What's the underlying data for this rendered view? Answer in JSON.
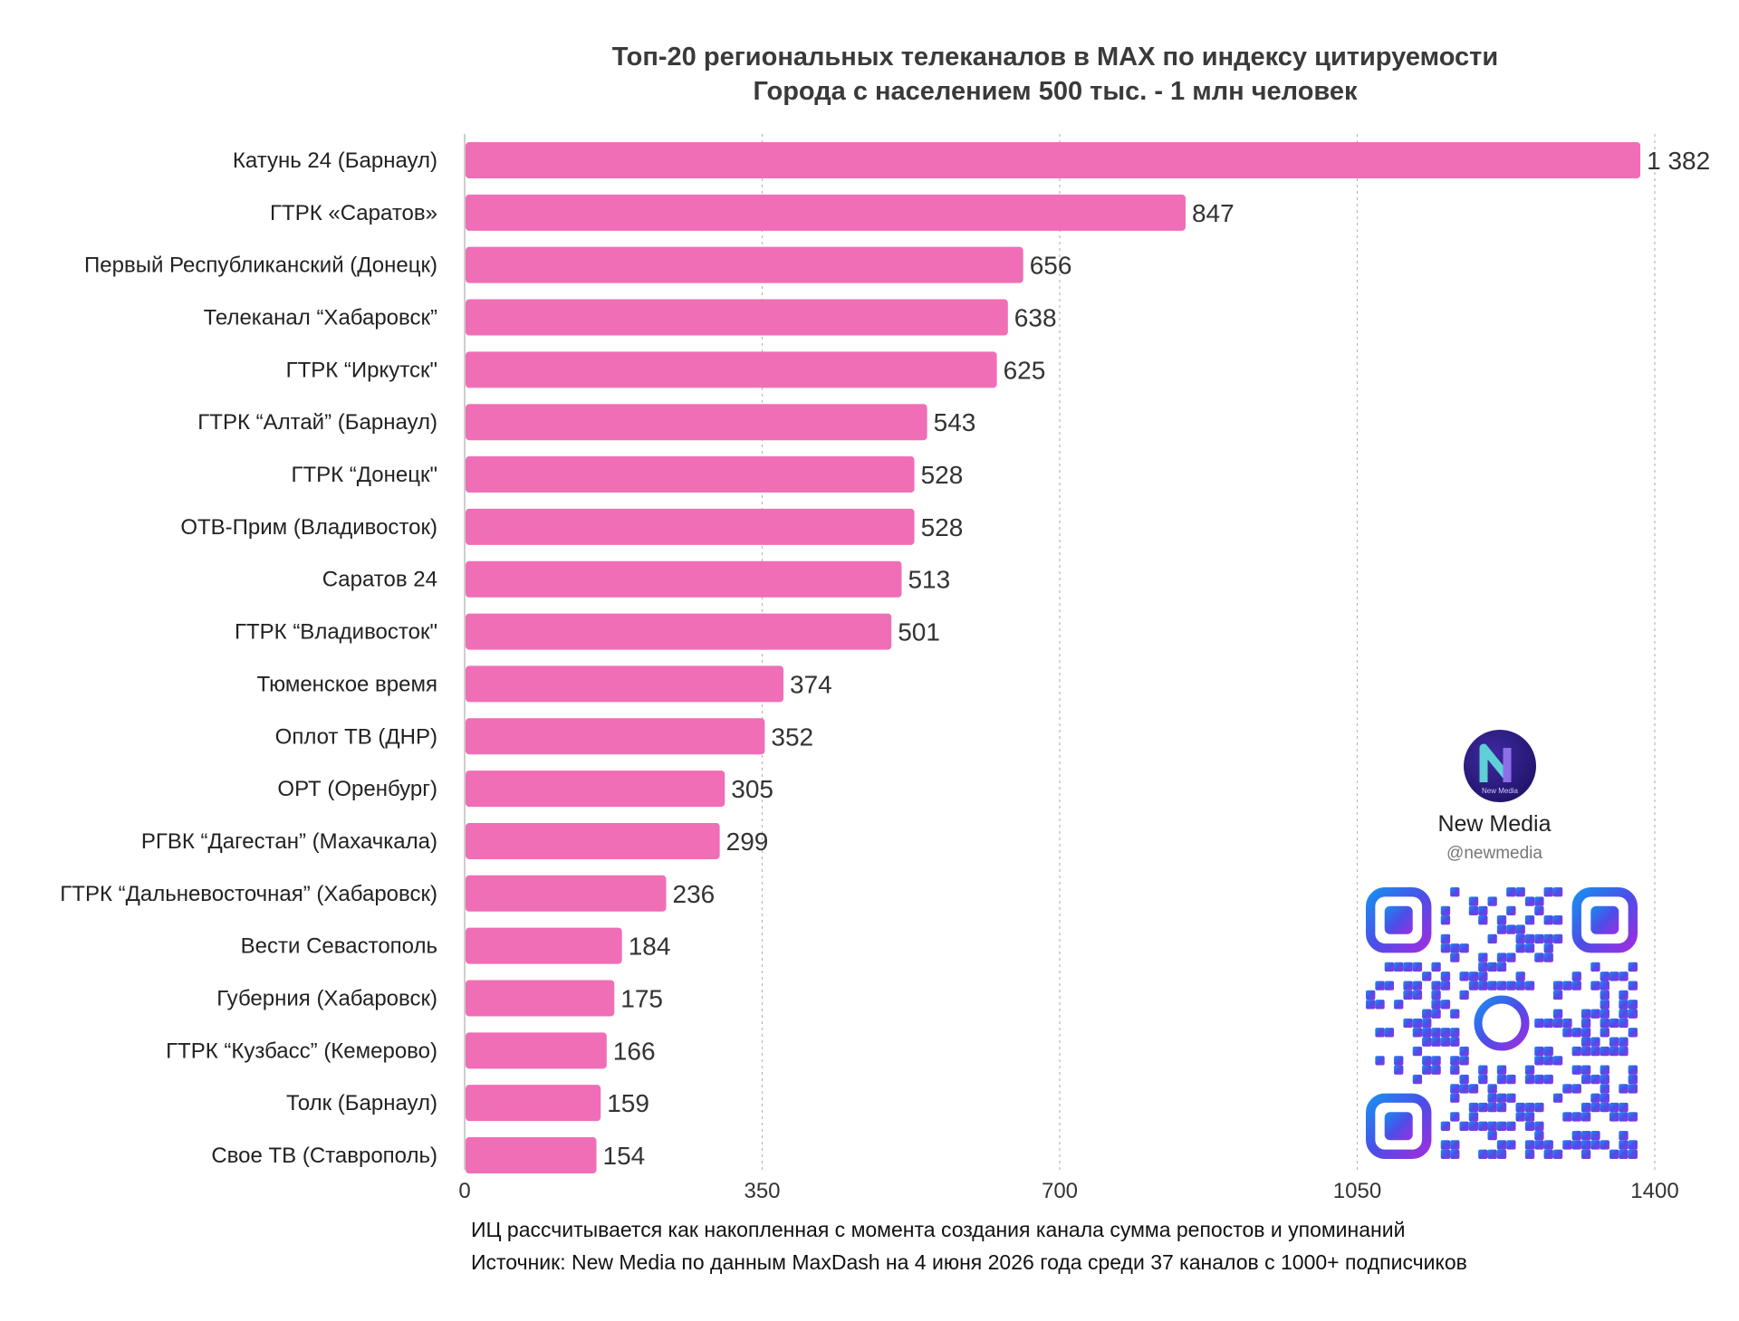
{
  "chart_data": {
    "type": "bar",
    "orientation": "horizontal",
    "title": "Топ-20 региональных телеканалов в MAX по индексу цитируемости",
    "subtitle": "Города с населением 500 тыс. - 1 млн человек",
    "categories": [
      "Катунь 24 (Барнаул)",
      "ГТРК «Саратов»",
      "Первый Республиканский (Донецк)",
      "Телеканал “Хабаровск”",
      "ГТРК “Иркутск\"",
      "ГТРК “Алтай” (Барнаул)",
      "ГТРК “Донецк\"",
      "ОТВ-Прим (Владивосток)",
      "Саратов 24",
      "ГТРК “Владивосток\"",
      "Тюменское время",
      "Оплот ТВ (ДНР)",
      "ОРТ (Оренбург)",
      "РГВК “Дагестан” (Махачкала)",
      "ГТРК “Дальневосточная” (Хабаровск)",
      "Вести Севастополь",
      "Губерния (Хабаровск)",
      "ГТРК “Кузбасс” (Кемерово)",
      "Толк (Барнаул)",
      "Свое ТВ (Ставрополь)"
    ],
    "values": [
      1382,
      847,
      656,
      638,
      625,
      543,
      528,
      528,
      513,
      501,
      374,
      352,
      305,
      299,
      236,
      184,
      175,
      166,
      159,
      154
    ],
    "value_labels": [
      "1 382",
      "847",
      "656",
      "638",
      "625",
      "543",
      "528",
      "528",
      "513",
      "501",
      "374",
      "352",
      "305",
      "299",
      "236",
      "184",
      "175",
      "166",
      "159",
      "154"
    ],
    "xlim": [
      0,
      1400
    ],
    "xticks": [
      0,
      350,
      700,
      1050,
      1400
    ],
    "xtick_labels": [
      "0",
      "350",
      "700",
      "1050",
      "1400"
    ],
    "grid": "vertical dashed",
    "bar_color": "#f06eb6"
  },
  "footnotes": {
    "line1": "ИЦ рассчитывается как накопленная с момента создания канала сумма репостов и упоминаний",
    "line2": "Источник: New Media по данным MaxDash на 4 июня 2026 года среди 37 каналов с 1000+ подписчиков"
  },
  "brand": {
    "name": "New Media",
    "handle": "@newmedia",
    "logo_icon": "new-media-logo-icon",
    "qr_icon": "qr-code-icon"
  }
}
